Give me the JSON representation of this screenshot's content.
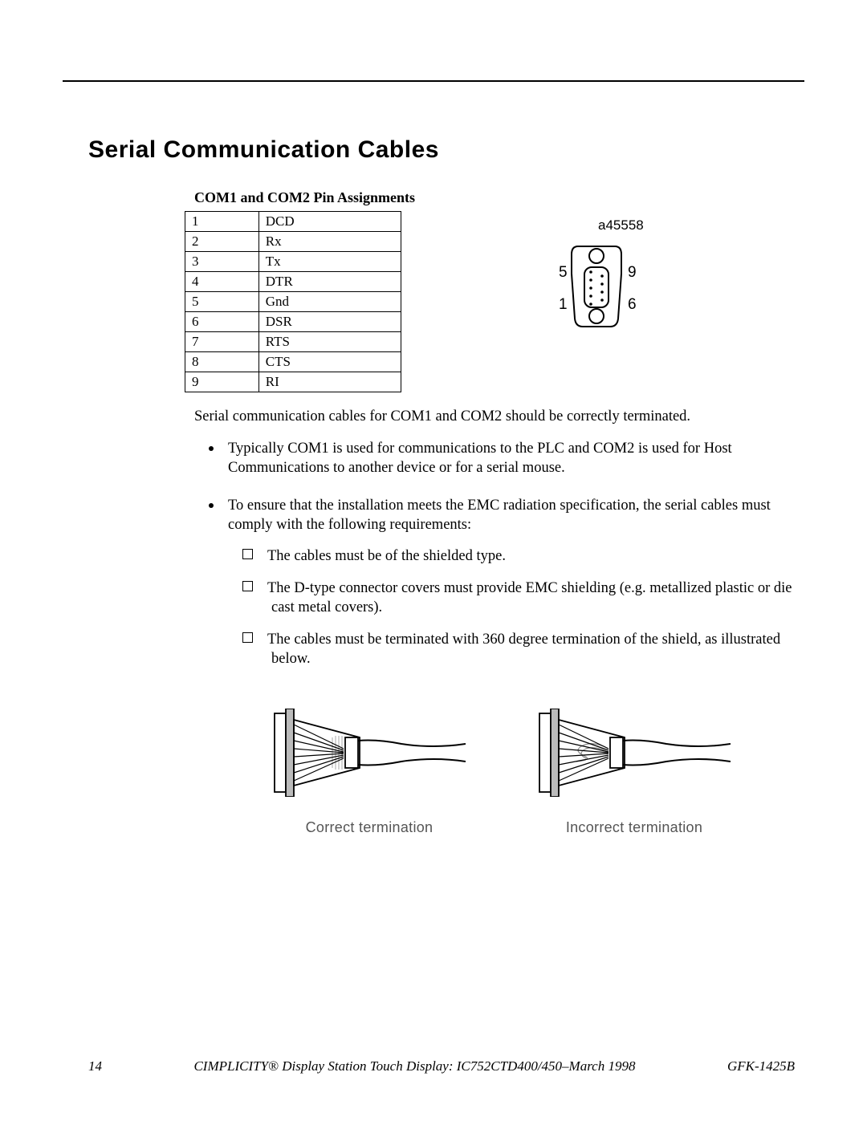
{
  "title": "Serial Communication Cables",
  "subhead": "COM1 and COM2 Pin Assignments",
  "pins": {
    "rows": [
      {
        "n": "1",
        "sig": "DCD"
      },
      {
        "n": "2",
        "sig": "Rx"
      },
      {
        "n": "3",
        "sig": "Tx"
      },
      {
        "n": "4",
        "sig": "DTR"
      },
      {
        "n": "5",
        "sig": "Gnd"
      },
      {
        "n": "6",
        "sig": "DSR"
      },
      {
        "n": "7",
        "sig": "RTS"
      },
      {
        "n": "8",
        "sig": "CTS"
      },
      {
        "n": "9",
        "sig": "RI"
      }
    ]
  },
  "connector": {
    "ref": "a45558",
    "labels": {
      "tl": "5",
      "tr": "9",
      "bl": "1",
      "br": "6"
    }
  },
  "intro": "Serial communication cables for COM1 and COM2 should be correctly terminated.",
  "bullets": {
    "b1": "Typically COM1 is used for communications to the PLC and COM2 is used for Host Communications to another device or for a serial mouse.",
    "b2_lead": "To ensure that the installation meets the EMC radiation specification, the serial cables must comply with the following requirements:",
    "subs": {
      "s1": "The cables must be of the shielded type.",
      "s2": "The D-type connector covers must provide EMC shielding (e.g. metallized plastic or die cast metal covers).",
      "s3": "The cables must be terminated with 360 degree termination of the shield, as illustrated below."
    }
  },
  "figs": {
    "left": "Correct   termination",
    "right": "Incorrect   termination"
  },
  "footer": {
    "page": "14",
    "center": "CIMPLICITY® Display Station Touch Display: IC752CTD400/450–March 1998",
    "right": "GFK-1425B"
  }
}
